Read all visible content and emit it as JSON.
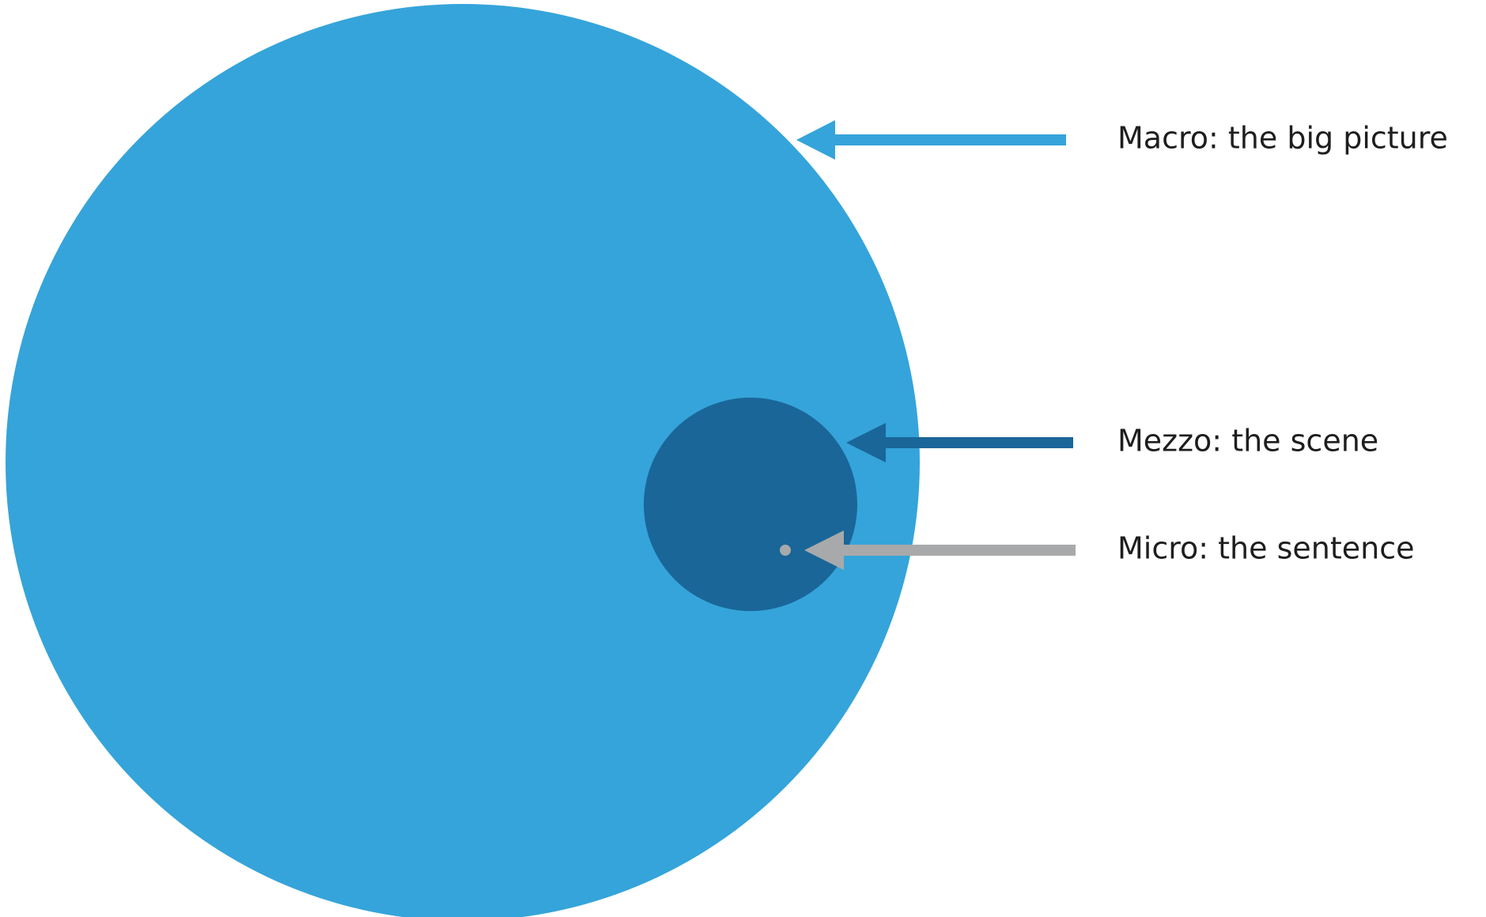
{
  "labels": {
    "macro": "Macro: the big picture",
    "mezzo": "Mezzo: the scene",
    "micro": "Micro: the sentence"
  },
  "colors": {
    "macro": "#35a4da",
    "mezzo": "#1a6699",
    "micro": "#a8a9aa",
    "text": "#1e1e1e",
    "background": "#ffffff"
  }
}
